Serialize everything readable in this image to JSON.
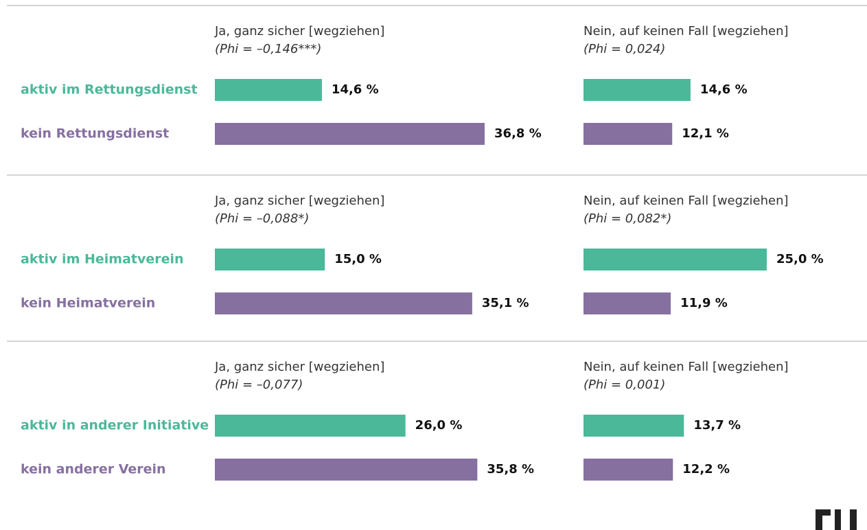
{
  "chart_data": [
    {
      "type": "bar",
      "categories": [
        "aktiv im Rettungsdienst",
        "kein Rettungsdienst"
      ],
      "colors": [
        "#4bb89a",
        "#8670a0"
      ],
      "series": [
        {
          "name": "Ja, ganz sicher [wegziehen]",
          "annotation": "(Phi = –0,146***)",
          "values": [
            14.6,
            36.8
          ],
          "value_labels": [
            "14,6 %",
            "36,8 %"
          ]
        },
        {
          "name": "Nein, auf keinen Fall [wegziehen]",
          "annotation": "(Phi = 0,024)",
          "values": [
            14.6,
            12.1
          ],
          "value_labels": [
            "14,6 %",
            "12,1 %"
          ]
        }
      ]
    },
    {
      "type": "bar",
      "categories": [
        "aktiv im Heimatverein",
        "kein Heimatverein"
      ],
      "colors": [
        "#4bb89a",
        "#8670a0"
      ],
      "series": [
        {
          "name": "Ja, ganz sicher [wegziehen]",
          "annotation": "(Phi = –0,088*)",
          "values": [
            15.0,
            35.1
          ],
          "value_labels": [
            "15,0 %",
            "35,1 %"
          ]
        },
        {
          "name": "Nein, auf keinen Fall [wegziehen]",
          "annotation": "(Phi = 0,082*)",
          "values": [
            25.0,
            11.9
          ],
          "value_labels": [
            "25,0 %",
            "11,9 %"
          ]
        }
      ]
    },
    {
      "type": "bar",
      "categories": [
        "aktiv in anderer Initiative",
        "kein anderer Verein"
      ],
      "colors": [
        "#4bb89a",
        "#8670a0"
      ],
      "series": [
        {
          "name": "Ja, ganz sicher [wegziehen]",
          "annotation": "(Phi = –0,077)",
          "values": [
            26.0,
            35.8
          ],
          "value_labels": [
            "26,0 %",
            "35,8 %"
          ]
        },
        {
          "name": "Nein, auf keinen Fall [wegziehen]",
          "annotation": "(Phi = 0,001)",
          "values": [
            13.7,
            12.2
          ],
          "value_labels": [
            "13,7 %",
            "12,2 %"
          ]
        }
      ]
    }
  ]
}
